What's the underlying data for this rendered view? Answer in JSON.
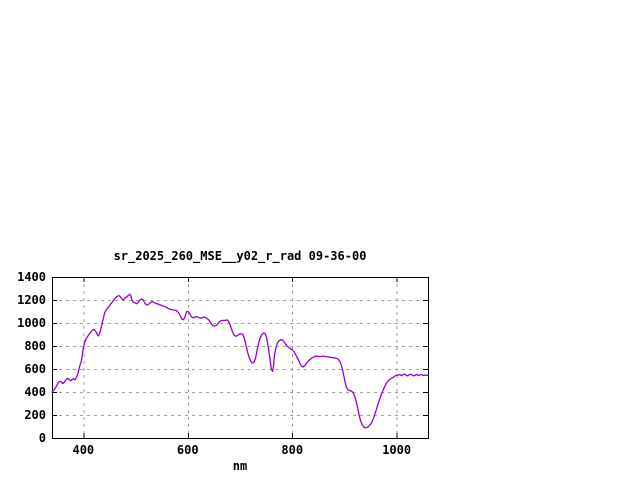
{
  "window": {
    "background": "#ffffff"
  },
  "chart_data": {
    "type": "line",
    "title": "sr_2025_260_MSE__y02_r_rad 09-36-00",
    "xlabel": "nm",
    "ylabel": "",
    "xlim": [
      340,
      1060
    ],
    "ylim": [
      0,
      1400
    ],
    "x_ticks": [
      400,
      600,
      800,
      1000
    ],
    "y_ticks": [
      0,
      200,
      400,
      600,
      800,
      1000,
      1200,
      1400
    ],
    "grid": true,
    "legend": "none",
    "line_color": "#9400d3",
    "grid_color": "#9e9e9e",
    "frame_color": "#000000",
    "series": [
      {
        "points": [
          [
            340,
            400
          ],
          [
            343,
            415
          ],
          [
            346,
            432
          ],
          [
            349,
            455
          ],
          [
            352,
            484
          ],
          [
            355,
            492
          ],
          [
            358,
            487
          ],
          [
            361,
            472
          ],
          [
            364,
            488
          ],
          [
            367,
            507
          ],
          [
            370,
            520
          ],
          [
            373,
            508
          ],
          [
            376,
            497
          ],
          [
            379,
            510
          ],
          [
            381,
            516
          ],
          [
            384,
            505
          ],
          [
            387,
            530
          ],
          [
            390,
            565
          ],
          [
            393,
            625
          ],
          [
            396,
            662
          ],
          [
            398,
            720
          ],
          [
            400,
            780
          ],
          [
            403,
            840
          ],
          [
            406,
            868
          ],
          [
            409,
            888
          ],
          [
            412,
            905
          ],
          [
            415,
            925
          ],
          [
            418,
            940
          ],
          [
            421,
            942
          ],
          [
            424,
            925
          ],
          [
            427,
            900
          ],
          [
            429,
            888
          ],
          [
            432,
            918
          ],
          [
            435,
            975
          ],
          [
            438,
            1035
          ],
          [
            441,
            1090
          ],
          [
            444,
            1115
          ],
          [
            447,
            1132
          ],
          [
            450,
            1150
          ],
          [
            453,
            1168
          ],
          [
            456,
            1185
          ],
          [
            459,
            1205
          ],
          [
            462,
            1220
          ],
          [
            465,
            1232
          ],
          [
            468,
            1238
          ],
          [
            471,
            1228
          ],
          [
            474,
            1210
          ],
          [
            477,
            1202
          ],
          [
            480,
            1218
          ],
          [
            483,
            1226
          ],
          [
            486,
            1240
          ],
          [
            489,
            1250
          ],
          [
            491,
            1235
          ],
          [
            493,
            1200
          ],
          [
            496,
            1180
          ],
          [
            499,
            1176
          ],
          [
            502,
            1168
          ],
          [
            505,
            1178
          ],
          [
            508,
            1198
          ],
          [
            511,
            1210
          ],
          [
            514,
            1202
          ],
          [
            517,
            1180
          ],
          [
            520,
            1160
          ],
          [
            523,
            1156
          ],
          [
            526,
            1166
          ],
          [
            529,
            1180
          ],
          [
            532,
            1186
          ],
          [
            535,
            1180
          ],
          [
            538,
            1172
          ],
          [
            542,
            1166
          ],
          [
            546,
            1160
          ],
          [
            550,
            1152
          ],
          [
            554,
            1145
          ],
          [
            558,
            1138
          ],
          [
            562,
            1128
          ],
          [
            566,
            1120
          ],
          [
            570,
            1115
          ],
          [
            574,
            1113
          ],
          [
            578,
            1110
          ],
          [
            582,
            1090
          ],
          [
            586,
            1060
          ],
          [
            589,
            1032
          ],
          [
            592,
            1028
          ],
          [
            595,
            1060
          ],
          [
            598,
            1098
          ],
          [
            601,
            1100
          ],
          [
            604,
            1080
          ],
          [
            607,
            1055
          ],
          [
            610,
            1045
          ],
          [
            613,
            1050
          ],
          [
            616,
            1056
          ],
          [
            619,
            1052
          ],
          [
            622,
            1046
          ],
          [
            625,
            1042
          ],
          [
            628,
            1046
          ],
          [
            631,
            1052
          ],
          [
            634,
            1046
          ],
          [
            637,
            1038
          ],
          [
            640,
            1028
          ],
          [
            643,
            1008
          ],
          [
            646,
            985
          ],
          [
            649,
            976
          ],
          [
            652,
            974
          ],
          [
            655,
            980
          ],
          [
            658,
            995
          ],
          [
            661,
            1013
          ],
          [
            664,
            1020
          ],
          [
            667,
            1023
          ],
          [
            670,
            1022
          ],
          [
            673,
            1024
          ],
          [
            676,
            1026
          ],
          [
            679,
            1008
          ],
          [
            682,
            970
          ],
          [
            685,
            930
          ],
          [
            688,
            900
          ],
          [
            691,
            885
          ],
          [
            694,
            888
          ],
          [
            697,
            898
          ],
          [
            700,
            905
          ],
          [
            703,
            908
          ],
          [
            706,
            896
          ],
          [
            709,
            855
          ],
          [
            712,
            796
          ],
          [
            715,
            740
          ],
          [
            718,
            695
          ],
          [
            721,
            665
          ],
          [
            724,
            653
          ],
          [
            727,
            658
          ],
          [
            730,
            700
          ],
          [
            733,
            770
          ],
          [
            736,
            835
          ],
          [
            739,
            875
          ],
          [
            742,
            900
          ],
          [
            745,
            915
          ],
          [
            748,
            910
          ],
          [
            751,
            870
          ],
          [
            754,
            796
          ],
          [
            757,
            700
          ],
          [
            760,
            600
          ],
          [
            762,
            579
          ],
          [
            764,
            620
          ],
          [
            766,
            720
          ],
          [
            769,
            790
          ],
          [
            772,
            830
          ],
          [
            775,
            845
          ],
          [
            778,
            855
          ],
          [
            781,
            853
          ],
          [
            784,
            840
          ],
          [
            787,
            820
          ],
          [
            790,
            800
          ],
          [
            793,
            788
          ],
          [
            796,
            780
          ],
          [
            800,
            768
          ],
          [
            803,
            752
          ],
          [
            806,
            730
          ],
          [
            809,
            705
          ],
          [
            812,
            680
          ],
          [
            815,
            645
          ],
          [
            818,
            625
          ],
          [
            821,
            617
          ],
          [
            824,
            630
          ],
          [
            827,
            650
          ],
          [
            830,
            665
          ],
          [
            833,
            678
          ],
          [
            836,
            690
          ],
          [
            840,
            702
          ],
          [
            844,
            710
          ],
          [
            848,
            712
          ],
          [
            852,
            708
          ],
          [
            856,
            710
          ],
          [
            860,
            712
          ],
          [
            864,
            708
          ],
          [
            868,
            705
          ],
          [
            872,
            703
          ],
          [
            876,
            700
          ],
          [
            880,
            698
          ],
          [
            884,
            694
          ],
          [
            888,
            685
          ],
          [
            892,
            660
          ],
          [
            895,
            620
          ],
          [
            898,
            560
          ],
          [
            901,
            490
          ],
          [
            904,
            440
          ],
          [
            907,
            418
          ],
          [
            910,
            412
          ],
          [
            913,
            408
          ],
          [
            916,
            398
          ],
          [
            919,
            370
          ],
          [
            922,
            330
          ],
          [
            925,
            270
          ],
          [
            928,
            200
          ],
          [
            931,
            150
          ],
          [
            934,
            115
          ],
          [
            937,
            95
          ],
          [
            940,
            88
          ],
          [
            943,
            92
          ],
          [
            946,
            100
          ],
          [
            949,
            115
          ],
          [
            952,
            132
          ],
          [
            955,
            165
          ],
          [
            958,
            205
          ],
          [
            961,
            245
          ],
          [
            964,
            290
          ],
          [
            967,
            330
          ],
          [
            970,
            370
          ],
          [
            973,
            405
          ],
          [
            976,
            435
          ],
          [
            979,
            465
          ],
          [
            982,
            488
          ],
          [
            985,
            502
          ],
          [
            988,
            512
          ],
          [
            991,
            522
          ],
          [
            994,
            530
          ],
          [
            997,
            540
          ],
          [
            1000,
            548
          ],
          [
            1003,
            545
          ],
          [
            1006,
            553
          ],
          [
            1009,
            542
          ],
          [
            1012,
            550
          ],
          [
            1015,
            556
          ],
          [
            1018,
            546
          ],
          [
            1021,
            540
          ],
          [
            1024,
            550
          ],
          [
            1027,
            556
          ],
          [
            1030,
            546
          ],
          [
            1033,
            540
          ],
          [
            1036,
            548
          ],
          [
            1039,
            553
          ],
          [
            1042,
            544
          ],
          [
            1045,
            549
          ],
          [
            1048,
            552
          ],
          [
            1051,
            543
          ],
          [
            1054,
            548
          ],
          [
            1057,
            546
          ],
          [
            1060,
            544
          ]
        ]
      }
    ]
  }
}
